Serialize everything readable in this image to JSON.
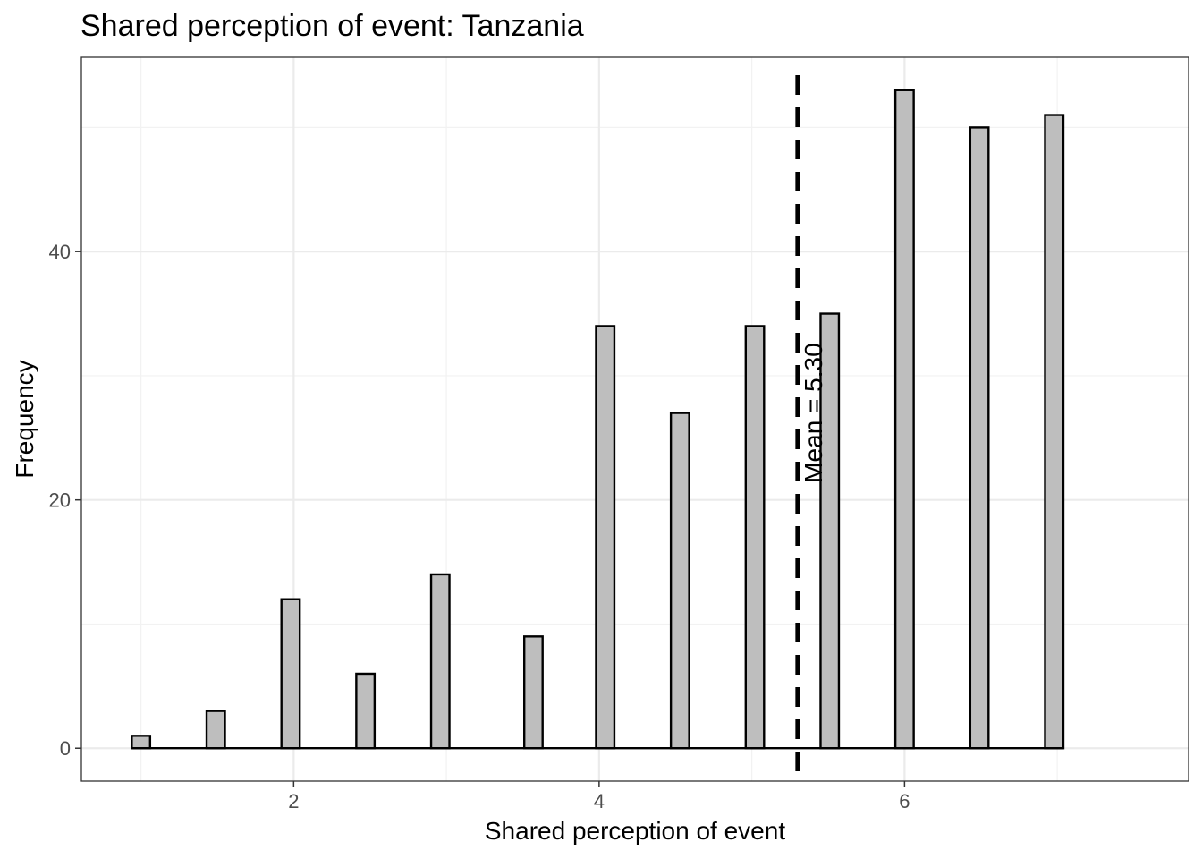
{
  "chart_data": {
    "type": "bar",
    "title": "Shared perception of event: Tanzania",
    "xlabel": "Shared perception of event",
    "ylabel": "Frequency",
    "x_ticks": [
      2,
      4,
      6
    ],
    "y_ticks": [
      0,
      20,
      40
    ],
    "xlim": [
      0.61,
      7.86
    ],
    "ylim": [
      -2.65,
      55.65
    ],
    "bin_width": 0.12,
    "bars": [
      {
        "x": 1.0,
        "value": 1
      },
      {
        "x": 1.49,
        "value": 3
      },
      {
        "x": 1.98,
        "value": 12
      },
      {
        "x": 2.47,
        "value": 6
      },
      {
        "x": 2.96,
        "value": 14
      },
      {
        "x": 3.57,
        "value": 9
      },
      {
        "x": 4.04,
        "value": 34
      },
      {
        "x": 4.53,
        "value": 27
      },
      {
        "x": 5.02,
        "value": 34
      },
      {
        "x": 5.51,
        "value": 35
      },
      {
        "x": 6.0,
        "value": 53
      },
      {
        "x": 6.49,
        "value": 50
      },
      {
        "x": 6.98,
        "value": 51
      }
    ],
    "mean_line": {
      "x": 5.3,
      "label": "Mean = 5.30",
      "style": "dashed"
    },
    "bar_fill": "#bebebe",
    "bar_stroke": "#000000",
    "grid": true,
    "theme": "bw"
  }
}
